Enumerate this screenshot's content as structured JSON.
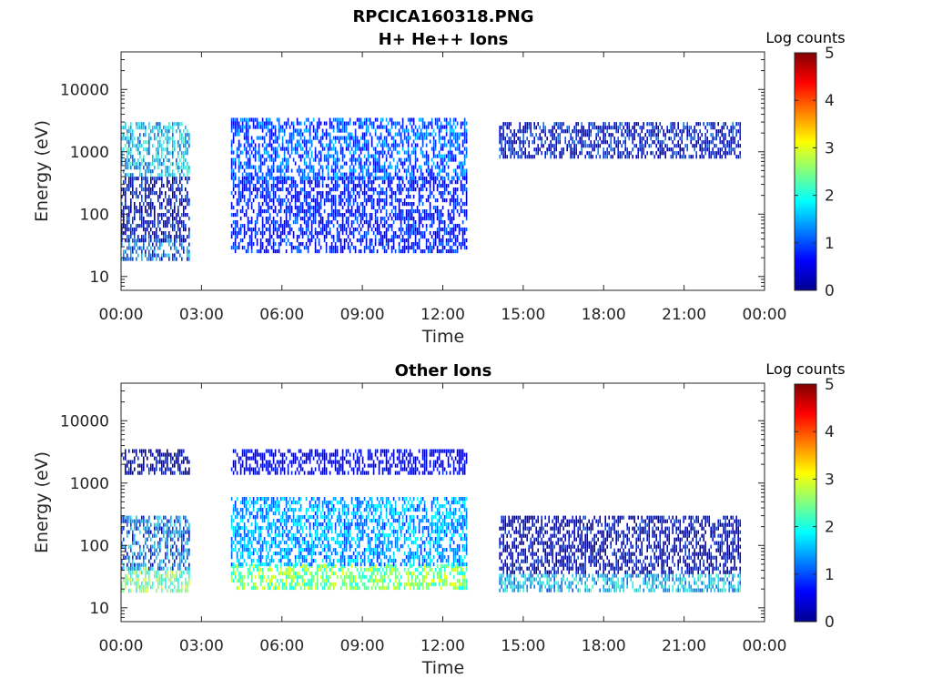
{
  "figure_title": "RPCICA160318.PNG",
  "colors": {
    "colormap": [
      "#00008f",
      "#0000ff",
      "#0080ff",
      "#00ffff",
      "#80ff80",
      "#ffff00",
      "#ff8000",
      "#ff0000",
      "#800000"
    ],
    "axis": "#262626"
  },
  "chart_data": [
    {
      "type": "heatmap",
      "title": "H+ He++ Ions",
      "xlabel": "Time",
      "ylabel": "Energy (eV)",
      "xlim": [
        0,
        24
      ],
      "x_ticks": [
        "00:00",
        "03:00",
        "06:00",
        "09:00",
        "12:00",
        "15:00",
        "18:00",
        "21:00",
        "00:00"
      ],
      "ylim": [
        6,
        40000
      ],
      "y_scale": "log",
      "y_ticks": [
        "10",
        "100",
        "1000",
        "10000"
      ],
      "colorbar": {
        "label": "Log counts",
        "range": [
          0,
          5
        ],
        "ticks": [
          "0",
          "1",
          "2",
          "3",
          "4",
          "5"
        ]
      },
      "data_coverage_hours": [
        [
          0.0,
          2.55
        ],
        [
          4.1,
          12.9
        ],
        [
          14.1,
          23.1
        ]
      ],
      "bands": [
        {
          "hours": [
            0.0,
            2.55
          ],
          "energy_eV": [
            20,
            40
          ],
          "log_counts": 1.2
        },
        {
          "hours": [
            0.0,
            2.55
          ],
          "energy_eV": [
            40,
            400
          ],
          "log_counts": 0.6
        },
        {
          "hours": [
            0.0,
            2.55
          ],
          "energy_eV": [
            400,
            3000
          ],
          "log_counts": 1.6
        },
        {
          "hours": [
            4.1,
            12.9
          ],
          "energy_eV": [
            25,
            400
          ],
          "log_counts": 0.6
        },
        {
          "hours": [
            4.1,
            12.9
          ],
          "energy_eV": [
            400,
            3500
          ],
          "log_counts": 1.0
        },
        {
          "hours": [
            14.1,
            23.1
          ],
          "energy_eV": [
            800,
            3000
          ],
          "log_counts": 0.7
        }
      ]
    },
    {
      "type": "heatmap",
      "title": "Other Ions",
      "xlabel": "Time",
      "ylabel": "Energy (eV)",
      "xlim": [
        0,
        24
      ],
      "x_ticks": [
        "00:00",
        "03:00",
        "06:00",
        "09:00",
        "12:00",
        "15:00",
        "18:00",
        "21:00",
        "00:00"
      ],
      "ylim": [
        6,
        40000
      ],
      "y_scale": "log",
      "y_ticks": [
        "10",
        "100",
        "1000",
        "10000"
      ],
      "colorbar": {
        "label": "Log counts",
        "range": [
          0,
          5
        ],
        "ticks": [
          "0",
          "1",
          "2",
          "3",
          "4",
          "5"
        ]
      },
      "data_coverage_hours": [
        [
          0.0,
          2.55
        ],
        [
          4.1,
          12.9
        ],
        [
          14.1,
          23.1
        ]
      ],
      "bands": [
        {
          "hours": [
            0.0,
            2.55
          ],
          "energy_eV": [
            20,
            45
          ],
          "log_counts": 2.4
        },
        {
          "hours": [
            0.0,
            2.55
          ],
          "energy_eV": [
            45,
            300
          ],
          "log_counts": 1.2
        },
        {
          "hours": [
            0.0,
            2.55
          ],
          "energy_eV": [
            1500,
            3500
          ],
          "log_counts": 0.4
        },
        {
          "hours": [
            4.1,
            12.9
          ],
          "energy_eV": [
            22,
            50
          ],
          "log_counts": 2.5
        },
        {
          "hours": [
            4.1,
            12.9
          ],
          "energy_eV": [
            50,
            600
          ],
          "log_counts": 1.4
        },
        {
          "hours": [
            4.1,
            12.9
          ],
          "energy_eV": [
            1500,
            3500
          ],
          "log_counts": 0.3
        },
        {
          "hours": [
            14.1,
            23.1
          ],
          "energy_eV": [
            18,
            35
          ],
          "log_counts": 1.6
        },
        {
          "hours": [
            14.1,
            23.1
          ],
          "energy_eV": [
            35,
            300
          ],
          "log_counts": 0.5
        }
      ]
    }
  ]
}
